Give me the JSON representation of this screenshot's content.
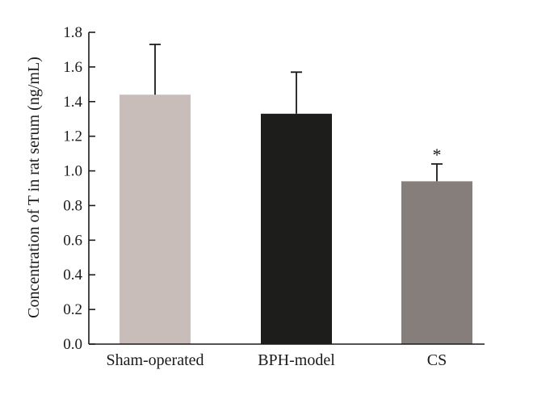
{
  "chart_data": {
    "type": "bar",
    "title": "",
    "xlabel": "",
    "ylabel": "Concentration of T in rat serum (ng/mL)",
    "ylim": [
      0,
      1.8
    ],
    "yticks": [
      "0.0",
      "0.2",
      "0.4",
      "0.6",
      "0.8",
      "1.0",
      "1.2",
      "1.4",
      "1.6",
      "1.8"
    ],
    "categories": [
      "Sham-operated",
      "BPH-model",
      "CS"
    ],
    "values": [
      1.44,
      1.33,
      0.94
    ],
    "error_upper": [
      0.29,
      0.24,
      0.1
    ],
    "bar_colors": [
      "#c8bdb9",
      "#1d1d1b",
      "#857e7a"
    ],
    "annotations": [
      "",
      "",
      "*"
    ],
    "grid": false,
    "legend": "none"
  }
}
